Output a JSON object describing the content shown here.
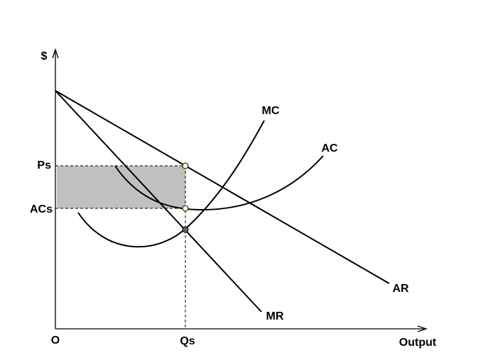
{
  "axes": {
    "y_label": "$",
    "x_label": "Output",
    "origin": "O"
  },
  "ticks": {
    "price": "Ps",
    "average_cost": "ACs",
    "quantity": "Qs"
  },
  "curves": {
    "mc": "MC",
    "ac": "AC",
    "ar": "AR",
    "mr": "MR"
  }
}
